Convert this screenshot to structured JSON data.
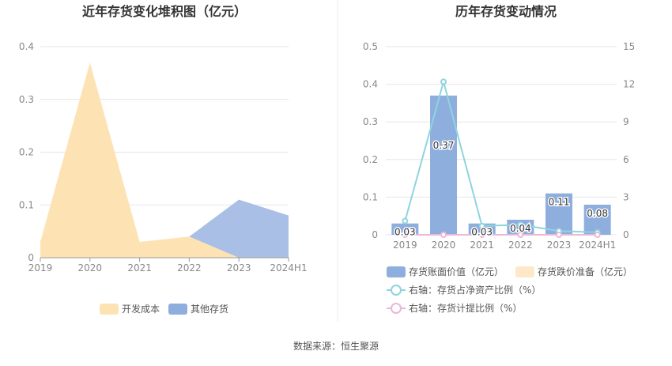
{
  "left_chart": {
    "title": "近年存货变化堆积图（亿元）",
    "legend": [
      "开发成本",
      "其他存货"
    ]
  },
  "right_chart": {
    "title": "历年存货变动情况",
    "legend": [
      "存货账面价值（亿元）",
      "存货跌价准备（亿元）",
      "右轴：存货占净资产比例（%）",
      "右轴：存货计提比例（%）"
    ]
  },
  "source": "数据来源：恒生聚源",
  "colors": {
    "dev_cost": "#fde3b4",
    "other_inventory": "#a9bfe6",
    "book_value": "#8eaede",
    "impairment": "#fde9c7",
    "ratio_net_assets": "#8fd4de",
    "provision_ratio": "#e9b8d8",
    "grid": "#e6e6e6",
    "axis_text": "#888888"
  },
  "chart_data": [
    {
      "type": "area",
      "stacked": true,
      "title": "近年存货变化堆积图（亿元）",
      "categories": [
        "2019",
        "2020",
        "2021",
        "2022",
        "2023",
        "2024H1"
      ],
      "series": [
        {
          "name": "开发成本",
          "values": [
            0.03,
            0.37,
            0.03,
            0.04,
            0.0,
            0.0
          ]
        },
        {
          "name": "其他存货",
          "values": [
            0.0,
            0.0,
            0.0,
            0.0,
            0.11,
            0.08
          ]
        }
      ],
      "ylim": [
        0,
        0.4
      ],
      "yticks": [
        "0",
        "0.1",
        "0.2",
        "0.3",
        "0.4"
      ],
      "grid": true,
      "legend_position": "bottom"
    },
    {
      "type": "bar",
      "title": "历年存货变动情况",
      "categories": [
        "2019",
        "2020",
        "2021",
        "2022",
        "2023",
        "2024H1"
      ],
      "series": [
        {
          "name": "存货账面价值（亿元）",
          "type": "bar",
          "axis": "left",
          "values": [
            0.03,
            0.37,
            0.03,
            0.04,
            0.11,
            0.08
          ],
          "labels": [
            "0.03",
            "0.37",
            "0.03",
            "0.04",
            "0.11",
            "0.08"
          ]
        },
        {
          "name": "存货跌价准备（亿元）",
          "type": "bar",
          "axis": "left",
          "values": [
            0,
            0,
            0,
            0,
            0,
            0
          ]
        },
        {
          "name": "右轴：存货占净资产比例（%）",
          "type": "line",
          "axis": "right",
          "values": [
            1.1,
            12.2,
            0.7,
            0.8,
            0.3,
            0.2
          ]
        },
        {
          "name": "右轴：存货计提比例（%）",
          "type": "line",
          "axis": "right",
          "values": [
            0,
            0,
            0,
            0,
            0,
            0
          ]
        }
      ],
      "ylim_left": [
        0,
        0.5
      ],
      "ylim_right": [
        0,
        15
      ],
      "yticks_left": [
        "0",
        "0.1",
        "0.2",
        "0.3",
        "0.4",
        "0.5"
      ],
      "yticks_right": [
        "0",
        "3",
        "6",
        "9",
        "12",
        "15"
      ],
      "grid": true,
      "legend_position": "bottom"
    }
  ]
}
